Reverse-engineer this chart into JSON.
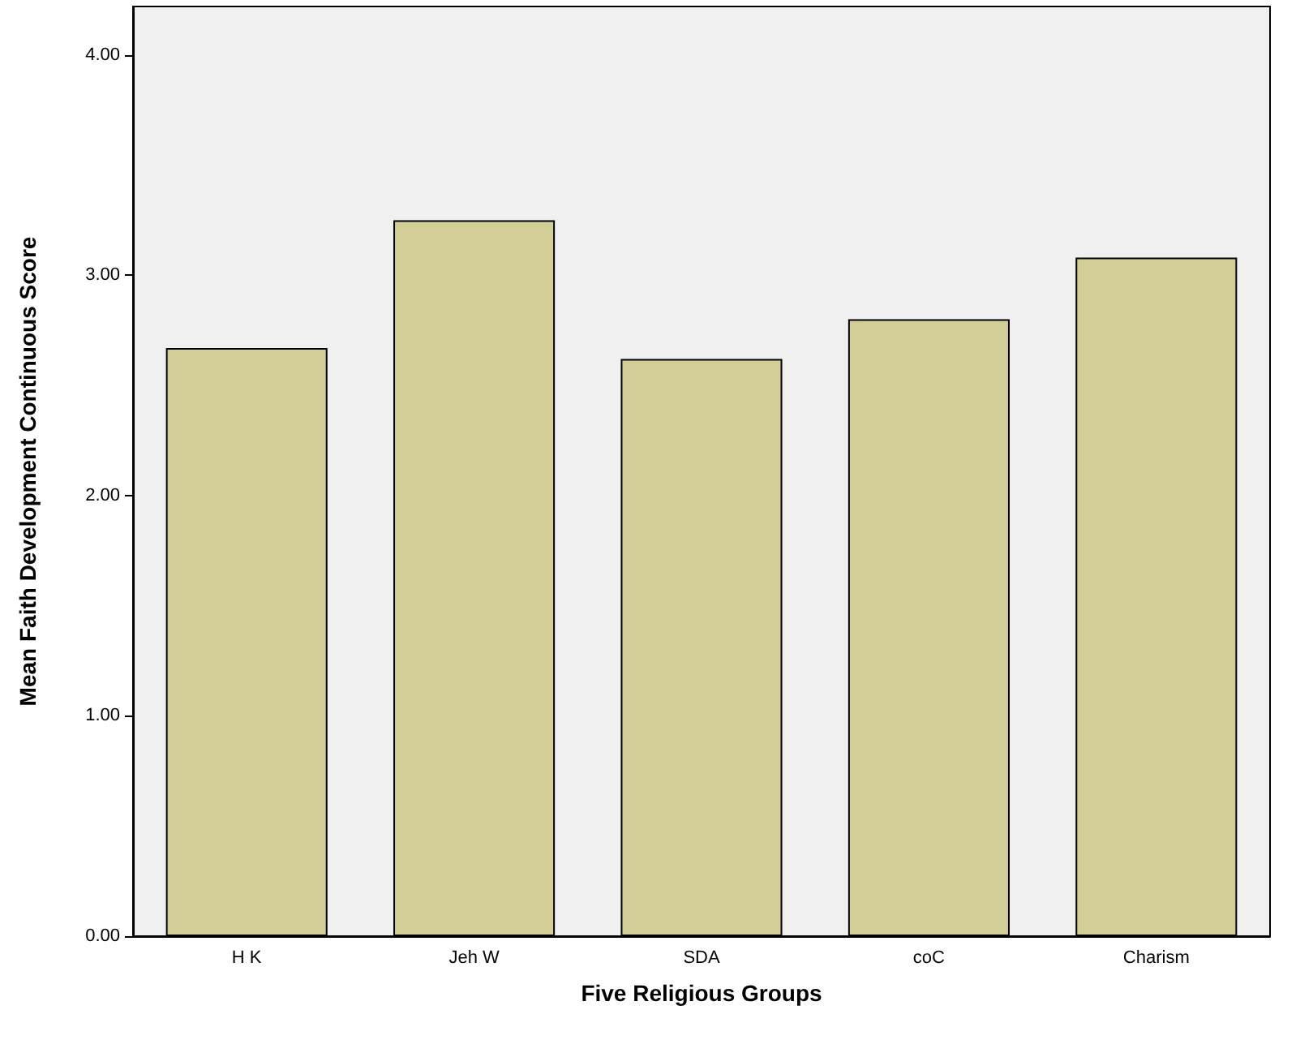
{
  "chart_data": {
    "type": "bar",
    "xlabel": "Five Religious Groups",
    "ylabel": "Mean Faith Development Continuous Score",
    "categories": [
      "H K",
      "Jeh W",
      "SDA",
      "coC",
      "Charism"
    ],
    "values": [
      2.67,
      3.25,
      2.62,
      2.8,
      3.08
    ],
    "color": "#d3ce97",
    "ylim": [
      0,
      4.22
    ],
    "yticks": [
      {
        "value": 0,
        "label": "0.00"
      },
      {
        "value": 1,
        "label": "1.00"
      },
      {
        "value": 2,
        "label": "2.00"
      },
      {
        "value": 3,
        "label": "3.00"
      },
      {
        "value": 4,
        "label": "4.00"
      }
    ],
    "grid": false
  }
}
